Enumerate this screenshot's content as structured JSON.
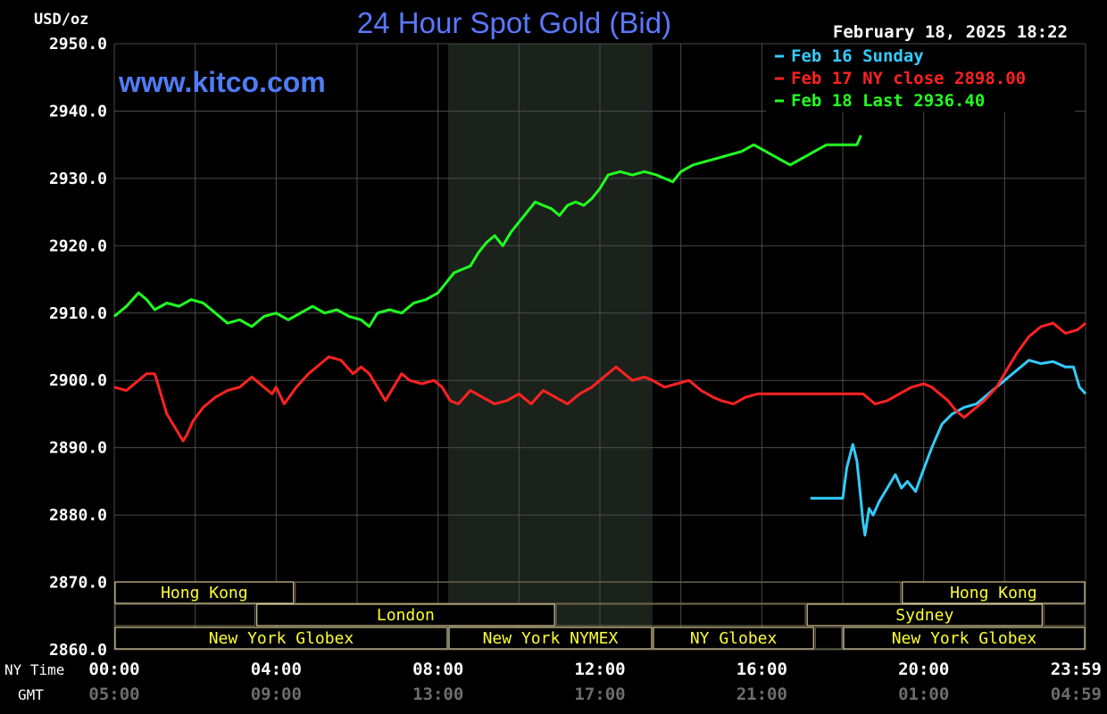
{
  "header": {
    "unit": "USD/oz",
    "title": "24 Hour Spot Gold (Bid)",
    "timestamp": "February 18, 2025 18:22",
    "watermark": "www.kitco.com"
  },
  "legend": [
    {
      "label": "Feb 16 Sunday",
      "color": "#33ccff"
    },
    {
      "label": "Feb 17 NY close 2898.00",
      "color": "#ff2222"
    },
    {
      "label": "Feb 18 Last 2936.40",
      "color": "#22ff22"
    }
  ],
  "chart_data": {
    "type": "line",
    "ylabel": "USD/oz",
    "ylim": [
      2860,
      2950
    ],
    "yticks": [
      "2950.0",
      "2940.0",
      "2930.0",
      "2920.0",
      "2910.0",
      "2900.0",
      "2890.0",
      "2880.0",
      "2870.0",
      "2860.0"
    ],
    "ytick_values": [
      2950,
      2940,
      2930,
      2920,
      2910,
      2900,
      2890,
      2880,
      2870,
      2860
    ],
    "xlim": [
      0,
      24
    ],
    "row_labels": {
      "ny": "NY Time",
      "gmt": "GMT"
    },
    "xticks": [
      {
        "ny": "00:00",
        "gmt": "05:00",
        "hour": 0
      },
      {
        "ny": "04:00",
        "gmt": "09:00",
        "hour": 4
      },
      {
        "ny": "08:00",
        "gmt": "13:00",
        "hour": 8
      },
      {
        "ny": "12:00",
        "gmt": "17:00",
        "hour": 12
      },
      {
        "ny": "16:00",
        "gmt": "21:00",
        "hour": 16
      },
      {
        "ny": "20:00",
        "gmt": "01:00",
        "hour": 20
      },
      {
        "ny": "23:59",
        "gmt": "04:59",
        "hour": 24
      }
    ],
    "grid": true,
    "legend_position": "top-right",
    "shaded_range": [
      8.25,
      13.3
    ],
    "series": [
      {
        "name": "Feb 16 Sunday",
        "color": "#33ccff",
        "points": [
          [
            17.2,
            2882.5
          ],
          [
            18.0,
            2882.5
          ],
          [
            18.1,
            2887
          ],
          [
            18.25,
            2890.5
          ],
          [
            18.35,
            2888
          ],
          [
            18.42,
            2884
          ],
          [
            18.5,
            2879
          ],
          [
            18.55,
            2877
          ],
          [
            18.65,
            2881
          ],
          [
            18.75,
            2880
          ],
          [
            18.9,
            2882
          ],
          [
            19.1,
            2884
          ],
          [
            19.3,
            2886
          ],
          [
            19.45,
            2884
          ],
          [
            19.6,
            2885
          ],
          [
            19.8,
            2883.5
          ],
          [
            19.95,
            2886
          ],
          [
            20.2,
            2890
          ],
          [
            20.45,
            2893.5
          ],
          [
            20.7,
            2895
          ],
          [
            21.0,
            2896
          ],
          [
            21.3,
            2896.5
          ],
          [
            21.6,
            2898
          ],
          [
            22.0,
            2900
          ],
          [
            22.3,
            2901.5
          ],
          [
            22.6,
            2903
          ],
          [
            22.9,
            2902.5
          ],
          [
            23.2,
            2902.8
          ],
          [
            23.5,
            2902
          ],
          [
            23.7,
            2902
          ],
          [
            23.85,
            2899
          ],
          [
            24.0,
            2898
          ]
        ]
      },
      {
        "name": "Feb 17 NY close 2898.00",
        "color": "#ff2222",
        "points": [
          [
            0,
            2899
          ],
          [
            0.3,
            2898.5
          ],
          [
            0.6,
            2900
          ],
          [
            0.8,
            2901
          ],
          [
            1.0,
            2901
          ],
          [
            1.1,
            2899
          ],
          [
            1.3,
            2895
          ],
          [
            1.5,
            2893
          ],
          [
            1.7,
            2891
          ],
          [
            1.8,
            2892
          ],
          [
            1.95,
            2894
          ],
          [
            2.2,
            2896
          ],
          [
            2.5,
            2897.5
          ],
          [
            2.8,
            2898.5
          ],
          [
            3.1,
            2899
          ],
          [
            3.4,
            2900.5
          ],
          [
            3.7,
            2899
          ],
          [
            3.9,
            2898
          ],
          [
            4.0,
            2899
          ],
          [
            4.2,
            2896.5
          ],
          [
            4.5,
            2899
          ],
          [
            4.8,
            2901
          ],
          [
            5.0,
            2902
          ],
          [
            5.3,
            2903.5
          ],
          [
            5.6,
            2903
          ],
          [
            5.9,
            2901
          ],
          [
            6.1,
            2902
          ],
          [
            6.3,
            2901
          ],
          [
            6.5,
            2899
          ],
          [
            6.7,
            2897
          ],
          [
            6.9,
            2899
          ],
          [
            7.1,
            2901
          ],
          [
            7.3,
            2900
          ],
          [
            7.6,
            2899.5
          ],
          [
            7.9,
            2900
          ],
          [
            8.1,
            2899
          ],
          [
            8.3,
            2897
          ],
          [
            8.5,
            2896.5
          ],
          [
            8.8,
            2898.5
          ],
          [
            9.1,
            2897.5
          ],
          [
            9.4,
            2896.5
          ],
          [
            9.7,
            2897
          ],
          [
            10.0,
            2898
          ],
          [
            10.3,
            2896.5
          ],
          [
            10.6,
            2898.5
          ],
          [
            10.9,
            2897.5
          ],
          [
            11.2,
            2896.5
          ],
          [
            11.5,
            2898
          ],
          [
            11.8,
            2899
          ],
          [
            12.1,
            2900.5
          ],
          [
            12.4,
            2902
          ],
          [
            12.6,
            2901
          ],
          [
            12.8,
            2900
          ],
          [
            13.1,
            2900.5
          ],
          [
            13.3,
            2900
          ],
          [
            13.6,
            2899
          ],
          [
            13.9,
            2899.5
          ],
          [
            14.2,
            2900
          ],
          [
            14.5,
            2898.5
          ],
          [
            14.8,
            2897.5
          ],
          [
            15.0,
            2897
          ],
          [
            15.3,
            2896.5
          ],
          [
            15.6,
            2897.5
          ],
          [
            15.9,
            2898
          ],
          [
            16.2,
            2898
          ],
          [
            16.6,
            2898
          ],
          [
            17.0,
            2898
          ],
          [
            17.5,
            2898
          ],
          [
            18.0,
            2898
          ],
          [
            18.5,
            2898
          ],
          [
            18.8,
            2896.5
          ],
          [
            19.1,
            2897
          ],
          [
            19.4,
            2898
          ],
          [
            19.7,
            2899
          ],
          [
            20.0,
            2899.5
          ],
          [
            20.2,
            2899
          ],
          [
            20.4,
            2898
          ],
          [
            20.6,
            2897
          ],
          [
            20.8,
            2895.5
          ],
          [
            21.0,
            2894.5
          ],
          [
            21.2,
            2895.5
          ],
          [
            21.5,
            2897
          ],
          [
            21.8,
            2899
          ],
          [
            22.0,
            2901
          ],
          [
            22.3,
            2904
          ],
          [
            22.6,
            2906.5
          ],
          [
            22.9,
            2908
          ],
          [
            23.2,
            2908.5
          ],
          [
            23.5,
            2907
          ],
          [
            23.8,
            2907.5
          ],
          [
            24.0,
            2908.5
          ]
        ]
      },
      {
        "name": "Feb 18 Last 2936.40",
        "color": "#22ff22",
        "points": [
          [
            0,
            2909.5
          ],
          [
            0.3,
            2911
          ],
          [
            0.6,
            2913
          ],
          [
            0.8,
            2912
          ],
          [
            1.0,
            2910.5
          ],
          [
            1.3,
            2911.5
          ],
          [
            1.6,
            2911
          ],
          [
            1.9,
            2912
          ],
          [
            2.2,
            2911.5
          ],
          [
            2.5,
            2910
          ],
          [
            2.8,
            2908.5
          ],
          [
            3.1,
            2909
          ],
          [
            3.4,
            2908
          ],
          [
            3.7,
            2909.5
          ],
          [
            4.0,
            2910
          ],
          [
            4.3,
            2909
          ],
          [
            4.6,
            2910
          ],
          [
            4.9,
            2911
          ],
          [
            5.2,
            2910
          ],
          [
            5.5,
            2910.5
          ],
          [
            5.8,
            2909.5
          ],
          [
            6.1,
            2909
          ],
          [
            6.3,
            2908
          ],
          [
            6.5,
            2910
          ],
          [
            6.8,
            2910.5
          ],
          [
            7.1,
            2910
          ],
          [
            7.4,
            2911.5
          ],
          [
            7.7,
            2912
          ],
          [
            8.0,
            2913
          ],
          [
            8.2,
            2914.5
          ],
          [
            8.4,
            2916
          ],
          [
            8.6,
            2916.5
          ],
          [
            8.8,
            2917
          ],
          [
            9.0,
            2919
          ],
          [
            9.2,
            2920.5
          ],
          [
            9.4,
            2921.5
          ],
          [
            9.6,
            2920
          ],
          [
            9.8,
            2922
          ],
          [
            10.0,
            2923.5
          ],
          [
            10.2,
            2925
          ],
          [
            10.4,
            2926.5
          ],
          [
            10.6,
            2926
          ],
          [
            10.8,
            2925.5
          ],
          [
            11.0,
            2924.5
          ],
          [
            11.2,
            2926
          ],
          [
            11.4,
            2926.5
          ],
          [
            11.6,
            2926
          ],
          [
            11.8,
            2927
          ],
          [
            12.0,
            2928.5
          ],
          [
            12.2,
            2930.5
          ],
          [
            12.5,
            2931
          ],
          [
            12.8,
            2930.5
          ],
          [
            13.1,
            2931
          ],
          [
            13.4,
            2930.5
          ],
          [
            13.6,
            2930
          ],
          [
            13.8,
            2929.5
          ],
          [
            14.0,
            2931
          ],
          [
            14.3,
            2932
          ],
          [
            14.6,
            2932.5
          ],
          [
            14.9,
            2933
          ],
          [
            15.2,
            2933.5
          ],
          [
            15.5,
            2934
          ],
          [
            15.8,
            2935
          ],
          [
            16.1,
            2934
          ],
          [
            16.4,
            2933
          ],
          [
            16.7,
            2932
          ],
          [
            17.0,
            2933
          ],
          [
            17.3,
            2934
          ],
          [
            17.6,
            2935
          ],
          [
            18.0,
            2935
          ],
          [
            18.35,
            2935
          ],
          [
            18.45,
            2936.4
          ]
        ]
      }
    ]
  },
  "sessions": [
    {
      "row": 0,
      "label": "Hong Kong",
      "start": 0,
      "end": 4.45
    },
    {
      "row": 0,
      "label": "",
      "start": 4.45,
      "end": 19.45
    },
    {
      "row": 0,
      "label": "Hong Kong",
      "start": 19.45,
      "end": 24
    },
    {
      "row": 1,
      "label": "",
      "start": 0,
      "end": 3.5
    },
    {
      "row": 1,
      "label": "London",
      "start": 3.5,
      "end": 10.9
    },
    {
      "row": 1,
      "label": "",
      "start": 10.9,
      "end": 17.1
    },
    {
      "row": 1,
      "label": "Sydney",
      "start": 17.1,
      "end": 22.95
    },
    {
      "row": 1,
      "label": "",
      "start": 22.95,
      "end": 24
    },
    {
      "row": 2,
      "label": "New York Globex",
      "start": 0,
      "end": 8.25
    },
    {
      "row": 2,
      "label": "New York NYMEX",
      "start": 8.25,
      "end": 13.3
    },
    {
      "row": 2,
      "label": "NY Globex",
      "start": 13.3,
      "end": 17.3
    },
    {
      "row": 2,
      "label": "",
      "start": 17.3,
      "end": 18.0
    },
    {
      "row": 2,
      "label": "New York Globex",
      "start": 18.0,
      "end": 24
    }
  ]
}
